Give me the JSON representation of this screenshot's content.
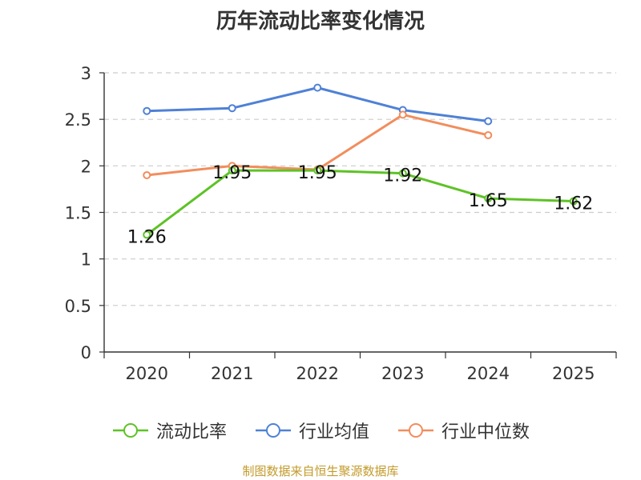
{
  "chart_data": {
    "type": "line",
    "title": "历年流动比率变化情况",
    "categories": [
      "2020",
      "2021",
      "2022",
      "2023",
      "2024",
      "2025"
    ],
    "ylim": [
      0,
      3
    ],
    "yticks": [
      "0",
      "0.5",
      "1",
      "1.5",
      "2",
      "2.5",
      "3"
    ],
    "grid": true,
    "legend_position": "bottom",
    "series": [
      {
        "name": "流动比率",
        "color": "#5ec226",
        "values": [
          1.26,
          1.95,
          1.95,
          1.92,
          1.65,
          1.62
        ],
        "labels": [
          "1.26",
          "1.95",
          "1.95",
          "1.92",
          "1.65",
          "1.62"
        ]
      },
      {
        "name": "行业均值",
        "color": "#4f81d6",
        "values": [
          2.59,
          2.62,
          2.84,
          2.6,
          2.48,
          null
        ]
      },
      {
        "name": "行业中位数",
        "color": "#f28d5c",
        "values": [
          1.9,
          2.0,
          1.96,
          2.55,
          2.33,
          null
        ]
      }
    ]
  },
  "source_text": "制图数据来自恒生聚源数据库"
}
